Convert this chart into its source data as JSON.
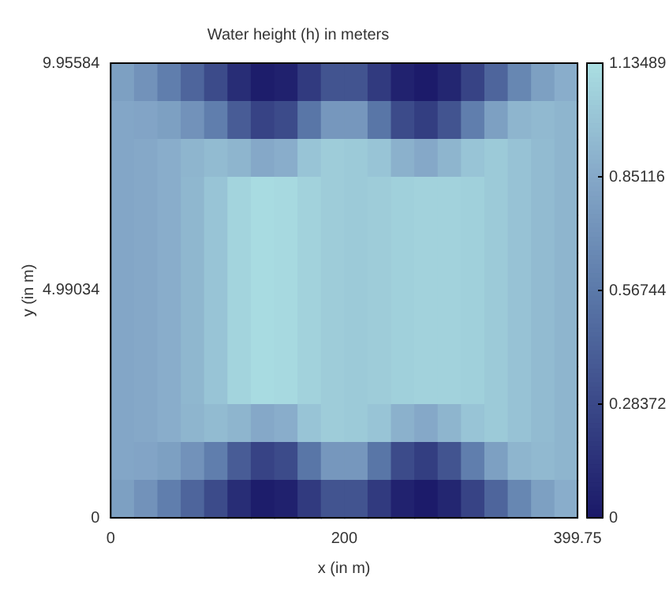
{
  "chart_data": {
    "type": "heatmap",
    "title": "Water height (h) in meters",
    "xlabel": "x (in m)",
    "ylabel": "y (in m)",
    "x": [
      10,
      30,
      50,
      70,
      90,
      110,
      130,
      150,
      170,
      190,
      210,
      230,
      250,
      270,
      290,
      310,
      330,
      350,
      370,
      390
    ],
    "xlim": [
      0,
      399.75
    ],
    "xticks": [
      0,
      200,
      399.75
    ],
    "ylim": [
      0,
      9.95584
    ],
    "yticks": [
      0,
      4.99034,
      9.95584
    ],
    "clim": [
      0,
      1.13489
    ],
    "cticks": [
      0,
      0.28372,
      0.56744,
      0.85116,
      1.13489
    ],
    "grid": false,
    "cells": [
      [
        0.8,
        0.72,
        0.6,
        0.45,
        0.3,
        0.12,
        0.03,
        0.05,
        0.2,
        0.35,
        0.35,
        0.2,
        0.06,
        0.02,
        0.08,
        0.25,
        0.45,
        0.65,
        0.8,
        0.88
      ],
      [
        0.84,
        0.83,
        0.8,
        0.72,
        0.6,
        0.4,
        0.25,
        0.3,
        0.55,
        0.75,
        0.75,
        0.55,
        0.3,
        0.22,
        0.35,
        0.6,
        0.8,
        0.92,
        0.94,
        0.92
      ],
      [
        0.84,
        0.85,
        0.88,
        0.92,
        0.95,
        0.92,
        0.85,
        0.88,
        1.0,
        1.04,
        1.03,
        1.0,
        0.9,
        0.85,
        0.92,
        1.0,
        1.03,
        0.99,
        0.95,
        0.92
      ],
      [
        0.84,
        0.85,
        0.88,
        0.93,
        1.0,
        1.08,
        1.12,
        1.11,
        1.07,
        1.04,
        1.03,
        1.04,
        1.06,
        1.07,
        1.07,
        1.06,
        1.03,
        0.99,
        0.95,
        0.92
      ],
      [
        0.84,
        0.85,
        0.88,
        0.93,
        1.0,
        1.08,
        1.12,
        1.11,
        1.07,
        1.04,
        1.03,
        1.04,
        1.06,
        1.07,
        1.07,
        1.06,
        1.03,
        0.99,
        0.95,
        0.92
      ],
      [
        0.84,
        0.85,
        0.88,
        0.93,
        1.0,
        1.08,
        1.12,
        1.11,
        1.07,
        1.04,
        1.03,
        1.04,
        1.06,
        1.07,
        1.07,
        1.06,
        1.03,
        0.99,
        0.95,
        0.92
      ],
      [
        0.84,
        0.85,
        0.88,
        0.93,
        1.0,
        1.08,
        1.12,
        1.11,
        1.07,
        1.04,
        1.03,
        1.04,
        1.06,
        1.07,
        1.07,
        1.06,
        1.03,
        0.99,
        0.95,
        0.92
      ],
      [
        0.84,
        0.85,
        0.88,
        0.93,
        1.0,
        1.08,
        1.12,
        1.11,
        1.07,
        1.04,
        1.03,
        1.04,
        1.06,
        1.07,
        1.07,
        1.06,
        1.03,
        0.99,
        0.95,
        0.92
      ],
      [
        0.84,
        0.85,
        0.88,
        0.93,
        1.0,
        1.08,
        1.12,
        1.11,
        1.07,
        1.04,
        1.03,
        1.04,
        1.06,
        1.07,
        1.07,
        1.06,
        1.03,
        0.99,
        0.95,
        0.92
      ],
      [
        0.84,
        0.85,
        0.88,
        0.92,
        0.95,
        0.92,
        0.85,
        0.88,
        1.0,
        1.04,
        1.03,
        1.0,
        0.9,
        0.85,
        0.92,
        1.0,
        1.03,
        0.99,
        0.95,
        0.92
      ],
      [
        0.84,
        0.83,
        0.8,
        0.72,
        0.6,
        0.4,
        0.25,
        0.3,
        0.55,
        0.75,
        0.75,
        0.55,
        0.3,
        0.22,
        0.35,
        0.6,
        0.8,
        0.92,
        0.94,
        0.92
      ],
      [
        0.8,
        0.72,
        0.6,
        0.45,
        0.3,
        0.12,
        0.03,
        0.05,
        0.2,
        0.35,
        0.35,
        0.2,
        0.06,
        0.02,
        0.08,
        0.25,
        0.45,
        0.65,
        0.8,
        0.88
      ]
    ]
  }
}
